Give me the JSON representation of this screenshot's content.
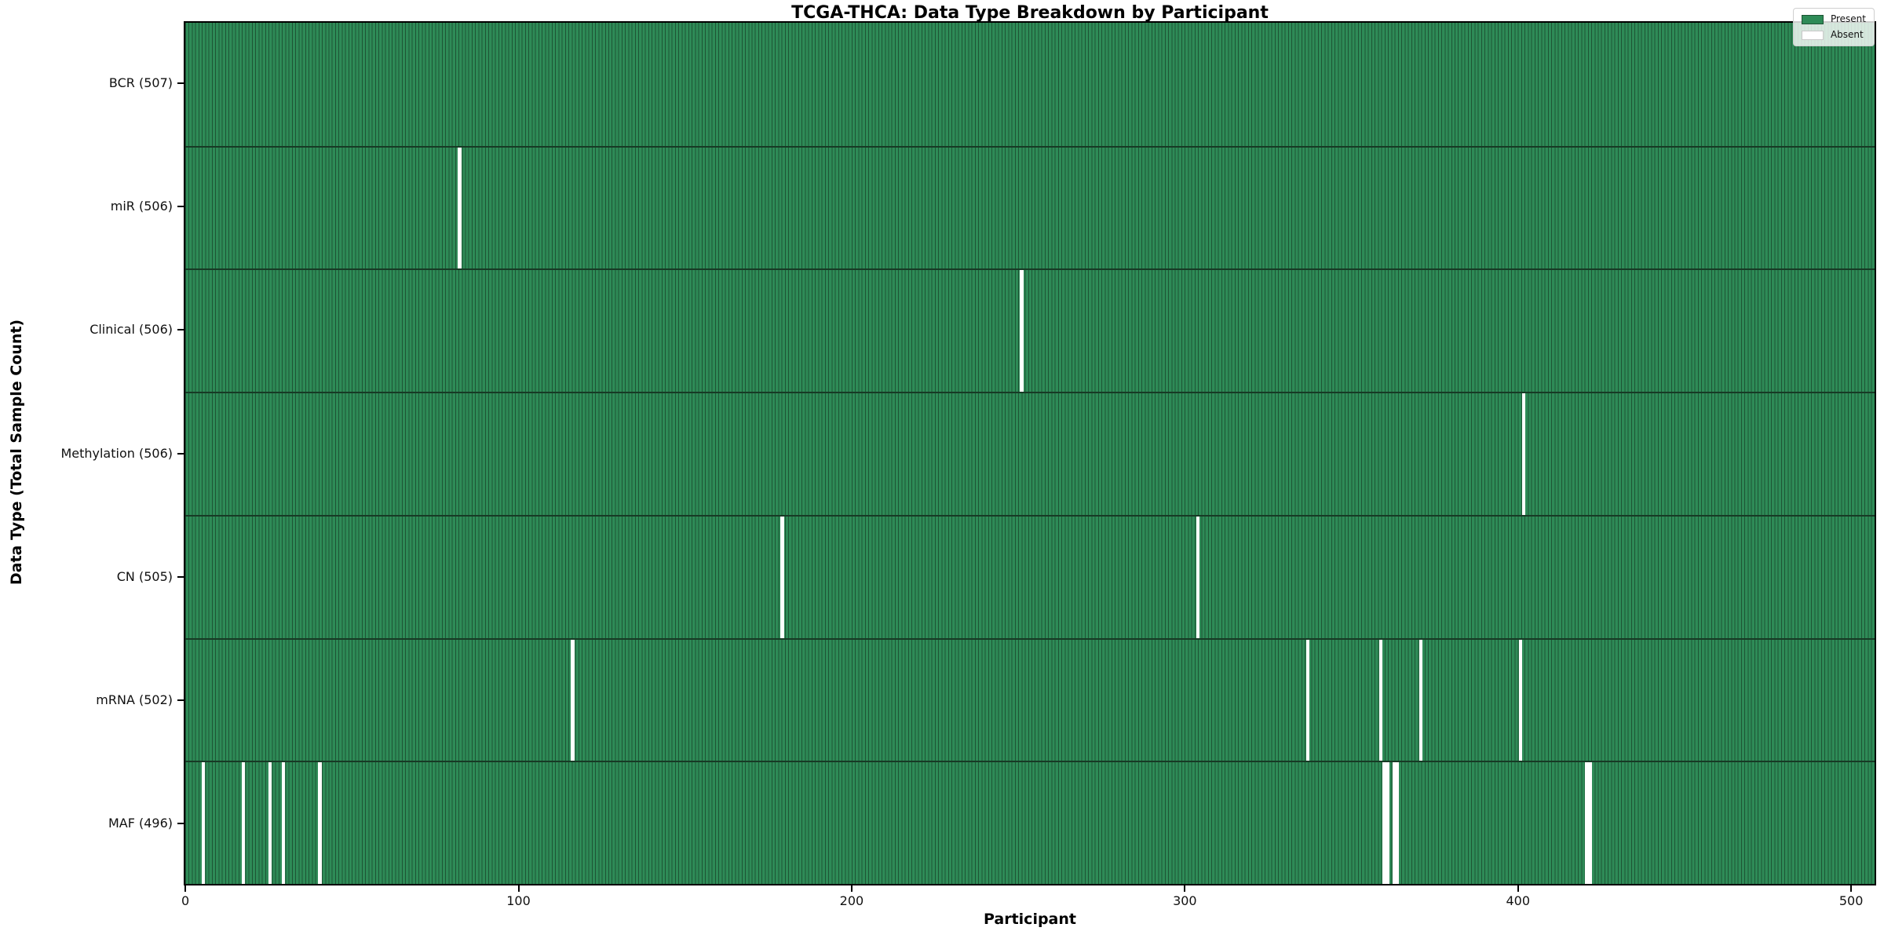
{
  "title": "TCGA-THCA: Data Type Breakdown by Participant",
  "xlabel": "Participant",
  "ylabel": "Data Type (Total Sample Count)",
  "legend": {
    "present_label": "Present",
    "absent_label": "Absent"
  },
  "colors": {
    "present": "#2e8b57",
    "absent": "#ffffff",
    "bar_edge": "#1d5434",
    "row_separator": "#173a25",
    "legend_swatch_absent_border": "#c8c8c8"
  },
  "chart_data": {
    "type": "heatmap",
    "title": "TCGA-THCA: Data Type Breakdown by Participant",
    "xlabel": "Participant",
    "ylabel": "Data Type (Total Sample Count)",
    "legend_entries": [
      "Present",
      "Absent"
    ],
    "legend_position": "upper right",
    "x_ticks": [
      0,
      100,
      200,
      300,
      400,
      500
    ],
    "x_range": [
      0,
      507
    ],
    "total_participants": 507,
    "cell_values": {
      "present": 1,
      "absent": 0
    },
    "rows": [
      {
        "label": "BCR (507)",
        "data_type": "BCR",
        "present_count": 507,
        "absent_count": 0,
        "absent_participants": []
      },
      {
        "label": "miR (506)",
        "data_type": "miR",
        "present_count": 506,
        "absent_count": 1,
        "absent_participants": [
          82
        ]
      },
      {
        "label": "Clinical (506)",
        "data_type": "Clinical",
        "present_count": 506,
        "absent_count": 1,
        "absent_participants": [
          251
        ]
      },
      {
        "label": "Methylation (506)",
        "data_type": "Methylation",
        "present_count": 506,
        "absent_count": 1,
        "absent_participants": [
          402
        ]
      },
      {
        "label": "CN (505)",
        "data_type": "CN",
        "present_count": 505,
        "absent_count": 2,
        "absent_participants": [
          179,
          304
        ]
      },
      {
        "label": "mRNA (502)",
        "data_type": "mRNA",
        "present_count": 502,
        "absent_count": 5,
        "absent_participants": [
          116,
          337,
          359,
          371,
          401
        ]
      },
      {
        "label": "MAF (496)",
        "data_type": "MAF",
        "present_count": 496,
        "absent_count": 11,
        "absent_participants": [
          5,
          17,
          25,
          29,
          40,
          360,
          361,
          363,
          364,
          421,
          422
        ]
      }
    ]
  }
}
